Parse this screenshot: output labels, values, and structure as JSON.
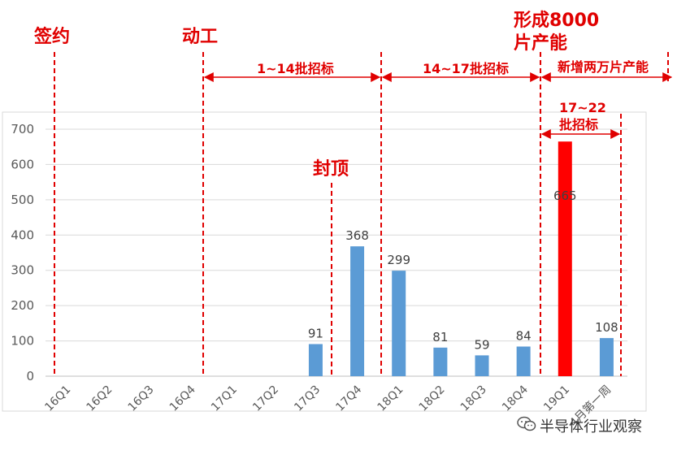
{
  "chart_data": {
    "type": "bar",
    "categories": [
      "16Q1",
      "16Q2",
      "16Q3",
      "16Q4",
      "17Q1",
      "17Q2",
      "17Q3",
      "17Q4",
      "18Q1",
      "18Q2",
      "18Q3",
      "18Q4",
      "19Q1",
      "4月第一周"
    ],
    "values": [
      null,
      null,
      null,
      null,
      null,
      null,
      91,
      368,
      299,
      81,
      59,
      84,
      665,
      108
    ],
    "value_labels": [
      "",
      "",
      "",
      "",
      "",
      "",
      "91",
      "368",
      "299",
      "81",
      "59",
      "84",
      "665",
      "108"
    ],
    "highlight_index": 12,
    "ylim": [
      0,
      700
    ],
    "yticks": [
      0,
      100,
      200,
      300,
      400,
      500,
      600,
      700
    ],
    "grid": true,
    "colors": {
      "bar": "#5b9bd5",
      "highlight": "#ff0000",
      "annotation": "#e00000"
    }
  },
  "annotations": {
    "sign": "签约",
    "start": "动工",
    "phase1": "1~14批招标",
    "phase2": "14~17批招标",
    "phase3": "新增两万片产能",
    "capacity_line1": "形成8000",
    "capacity_line2": "片产能",
    "phase4_line1": "17~22",
    "phase4_line2": "批招标",
    "topping_out": "封顶"
  },
  "watermark": {
    "text": "半导体行业观察",
    "icon": "wechat-icon"
  }
}
